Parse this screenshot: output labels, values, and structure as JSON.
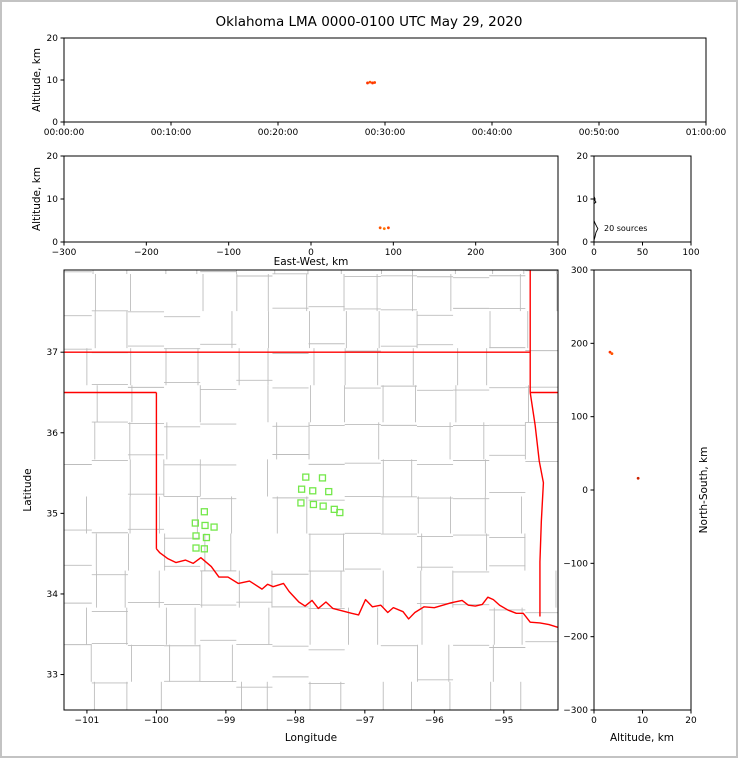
{
  "title": "Oklahoma LMA 0000-0100 UTC May 29, 2020",
  "colors": {
    "axis": "#000000",
    "county_line": "#bdbdbd",
    "state_line": "#ff0000",
    "station_marker": "#74e84a",
    "source_point": "#ff3300"
  },
  "chart_data": [
    {
      "id": "time_height",
      "type": "scatter",
      "xlabel": "",
      "ylabel": "Altitude, km",
      "xlim": [
        0,
        3600
      ],
      "ylim": [
        0,
        20
      ],
      "xticks": [
        {
          "v": 0,
          "label": "00:00:00"
        },
        {
          "v": 600,
          "label": "00:10:00"
        },
        {
          "v": 1200,
          "label": "00:20:00"
        },
        {
          "v": 1800,
          "label": "00:30:00"
        },
        {
          "v": 2400,
          "label": "00:40:00"
        },
        {
          "v": 3000,
          "label": "00:50:00"
        },
        {
          "v": 3600,
          "label": "01:00:00"
        }
      ],
      "yticks": [
        0,
        10,
        20
      ],
      "points": [
        {
          "x": 1702,
          "y": 9.3,
          "c": "#ff3300"
        },
        {
          "x": 1716,
          "y": 9.5,
          "c": "#ff5500"
        },
        {
          "x": 1730,
          "y": 9.3,
          "c": "#ff3300"
        },
        {
          "x": 1742,
          "y": 9.4,
          "c": "#ff4400"
        }
      ]
    },
    {
      "id": "ew_height",
      "type": "scatter",
      "xlabel": "East-West, km",
      "ylabel": "Altitude, km",
      "xlim": [
        -300,
        300
      ],
      "ylim": [
        0,
        20
      ],
      "xticks": [
        -300,
        -200,
        -100,
        0,
        100,
        200,
        300
      ],
      "yticks": [
        0,
        10,
        20
      ],
      "points": [
        {
          "x": 84,
          "y": 3.3,
          "c": "#ff5500"
        },
        {
          "x": 89,
          "y": 3.1,
          "c": "#ff7700"
        },
        {
          "x": 94,
          "y": 3.3,
          "c": "#ff4400"
        }
      ]
    },
    {
      "id": "source_histogram",
      "type": "line",
      "annotation": "20 sources",
      "xlabel": "",
      "ylabel": "",
      "xlim": [
        0,
        100
      ],
      "ylim": [
        0,
        20
      ],
      "xticks": [
        0,
        50,
        100
      ],
      "yticks": [
        0,
        10,
        20
      ],
      "profile_count_alt": [
        [
          0,
          20
        ],
        [
          0,
          10.6
        ],
        [
          1,
          10.1
        ],
        [
          1,
          9.6
        ],
        [
          2,
          9.3
        ],
        [
          0,
          8.9
        ],
        [
          0,
          5.0
        ],
        [
          1,
          4.4
        ],
        [
          3,
          3.5
        ],
        [
          4,
          3.1
        ],
        [
          2,
          2.2
        ],
        [
          1,
          1.2
        ],
        [
          0,
          0.4
        ],
        [
          0,
          0
        ]
      ]
    },
    {
      "id": "plan_view",
      "type": "scatter",
      "xlabel": "Longitude",
      "ylabel": "Latitude",
      "xlim": [
        -101.33,
        -94.22
      ],
      "ylim": [
        32.56,
        38.02
      ],
      "xticks": [
        -101,
        -100,
        -99,
        -98,
        -97,
        -96,
        -95
      ],
      "yticks": [
        33,
        34,
        35,
        36,
        37
      ],
      "marker_color": "#74e84a",
      "stations": [
        [
          -97.85,
          35.45
        ],
        [
          -97.61,
          35.44
        ],
        [
          -97.91,
          35.3
        ],
        [
          -97.75,
          35.28
        ],
        [
          -97.52,
          35.27
        ],
        [
          -97.92,
          35.13
        ],
        [
          -97.74,
          35.11
        ],
        [
          -97.6,
          35.09
        ],
        [
          -97.44,
          35.05
        ],
        [
          -97.36,
          35.01
        ],
        [
          -99.31,
          35.02
        ],
        [
          -99.44,
          34.88
        ],
        [
          -99.3,
          34.85
        ],
        [
          -99.17,
          34.83
        ],
        [
          -99.43,
          34.72
        ],
        [
          -99.28,
          34.7
        ],
        [
          -99.43,
          34.57
        ],
        [
          -99.31,
          34.56
        ]
      ]
    },
    {
      "id": "ns_height",
      "type": "scatter",
      "xlabel": "Altitude, km",
      "ylabel": "North-South, km",
      "xlim": [
        0,
        20
      ],
      "ylim": [
        -300,
        300
      ],
      "xticks": [
        0,
        10,
        20
      ],
      "yticks": [
        -300,
        -200,
        -100,
        0,
        100,
        200,
        300
      ],
      "points": [
        {
          "x": 3.3,
          "y": 188,
          "c": "#ff3300"
        },
        {
          "x": 3.7,
          "y": 186,
          "c": "#ff5500"
        },
        {
          "x": 9.1,
          "y": 16,
          "c": "#cc2200"
        }
      ]
    }
  ],
  "map": {
    "county_line_color": "#bdbdbd",
    "state_line_color": "#ff0000",
    "state_lines": [
      [
        [
          -101.5,
          37.0
        ],
        [
          -94.62,
          37.0
        ]
      ],
      [
        [
          -94.62,
          38.1
        ],
        [
          -94.62,
          36.5
        ]
      ],
      [
        [
          -94.62,
          36.5
        ],
        [
          -94.2,
          36.5
        ]
      ],
      [
        [
          -94.62,
          36.5
        ],
        [
          -94.55,
          36.1
        ],
        [
          -94.49,
          35.65
        ],
        [
          -94.43,
          35.38
        ],
        [
          -94.46,
          34.9
        ],
        [
          -94.48,
          34.4
        ],
        [
          -94.48,
          33.72
        ]
      ],
      [
        [
          -101.5,
          36.5
        ],
        [
          -100.0,
          36.5
        ]
      ],
      [
        [
          -100.0,
          36.5
        ],
        [
          -100.0,
          34.56
        ]
      ],
      [
        [
          -100.0,
          34.56
        ],
        [
          -99.95,
          34.51
        ],
        [
          -99.84,
          34.44
        ],
        [
          -99.72,
          34.39
        ],
        [
          -99.58,
          34.42
        ],
        [
          -99.47,
          34.38
        ],
        [
          -99.36,
          34.45
        ],
        [
          -99.21,
          34.34
        ],
        [
          -99.1,
          34.21
        ],
        [
          -98.97,
          34.21
        ],
        [
          -98.82,
          34.13
        ],
        [
          -98.66,
          34.16
        ],
        [
          -98.48,
          34.06
        ],
        [
          -98.4,
          34.12
        ],
        [
          -98.32,
          34.09
        ],
        [
          -98.17,
          34.13
        ],
        [
          -98.09,
          34.03
        ],
        [
          -97.95,
          33.9
        ],
        [
          -97.86,
          33.85
        ],
        [
          -97.76,
          33.92
        ],
        [
          -97.67,
          33.82
        ],
        [
          -97.56,
          33.9
        ],
        [
          -97.46,
          33.82
        ],
        [
          -97.37,
          33.8
        ],
        [
          -97.19,
          33.76
        ],
        [
          -97.09,
          33.74
        ],
        [
          -96.99,
          33.93
        ],
        [
          -96.89,
          33.84
        ],
        [
          -96.77,
          33.86
        ],
        [
          -96.67,
          33.77
        ],
        [
          -96.59,
          33.83
        ],
        [
          -96.45,
          33.78
        ],
        [
          -96.37,
          33.69
        ],
        [
          -96.28,
          33.77
        ],
        [
          -96.15,
          33.84
        ],
        [
          -96.0,
          33.83
        ],
        [
          -95.84,
          33.87
        ],
        [
          -95.76,
          33.89
        ],
        [
          -95.6,
          33.92
        ],
        [
          -95.51,
          33.86
        ],
        [
          -95.41,
          33.85
        ],
        [
          -95.31,
          33.87
        ],
        [
          -95.23,
          33.96
        ],
        [
          -95.15,
          33.93
        ],
        [
          -95.06,
          33.86
        ],
        [
          -94.94,
          33.8
        ],
        [
          -94.82,
          33.76
        ],
        [
          -94.72,
          33.76
        ],
        [
          -94.62,
          33.65
        ],
        [
          -94.48,
          33.64
        ],
        [
          -94.35,
          33.62
        ],
        [
          -94.2,
          33.58
        ]
      ]
    ]
  }
}
